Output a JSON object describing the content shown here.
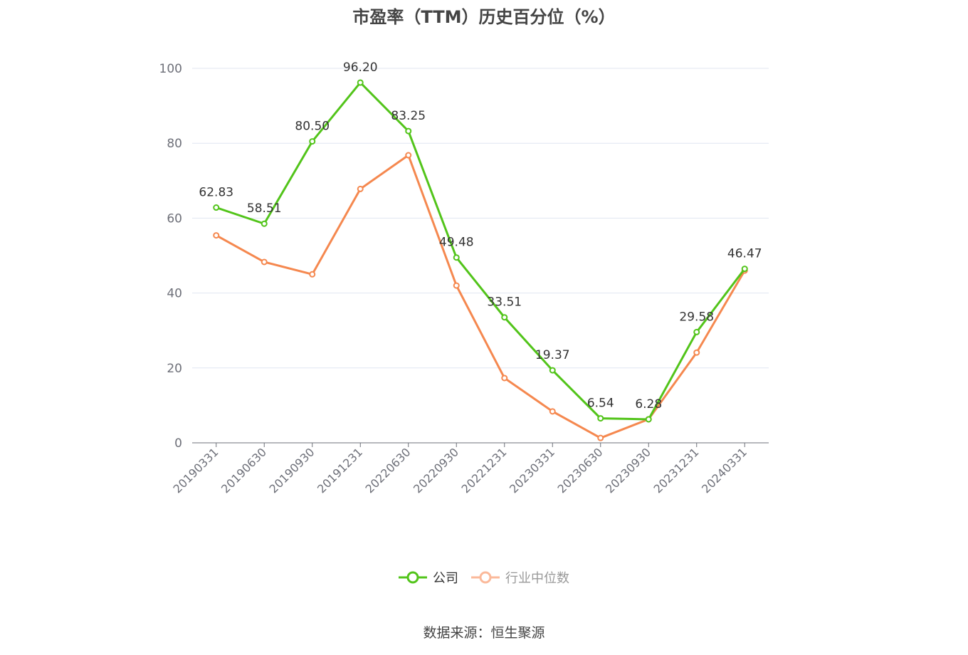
{
  "chart_data": {
    "type": "line",
    "title": "市盈率（TTM）历史百分位（%）",
    "categories": [
      "20190331",
      "20190630",
      "20190930",
      "20191231",
      "20220630",
      "20220930",
      "20221231",
      "20230331",
      "20230630",
      "20230930",
      "20231231",
      "20240331"
    ],
    "series": [
      {
        "name": "公司",
        "color": "#52c41a",
        "values": [
          62.83,
          58.51,
          80.5,
          96.2,
          83.25,
          49.48,
          33.51,
          19.37,
          6.54,
          6.28,
          29.58,
          46.47
        ],
        "labels": [
          "62.83",
          "58.51",
          "80.50",
          "96.20",
          "83.25",
          "49.48",
          "33.51",
          "19.37",
          "6.54",
          "6.28",
          "29.58",
          "46.47"
        ]
      },
      {
        "name": "行业中位数",
        "color": "#f5884f",
        "values": [
          55.4,
          48.3,
          45.0,
          67.8,
          76.8,
          42.0,
          17.3,
          8.4,
          1.3,
          6.3,
          24.1,
          46.0
        ]
      }
    ],
    "ylim": [
      0,
      100
    ],
    "yticks": [
      "0",
      "20",
      "40",
      "60",
      "80",
      "100"
    ],
    "grid": true,
    "legend": "bottom"
  },
  "source": "数据来源：恒生聚源"
}
